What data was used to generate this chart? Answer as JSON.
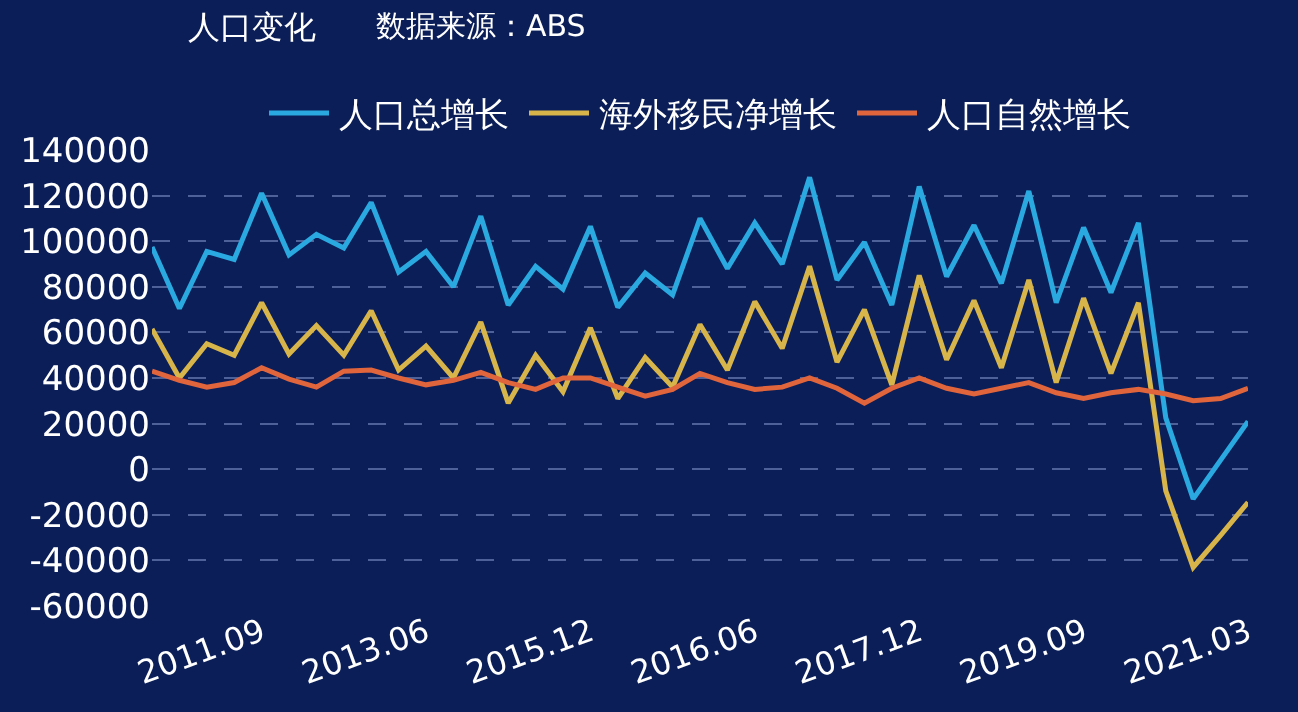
{
  "chart_data": {
    "type": "line",
    "title": "人口变化",
    "subtitle": "数据来源：ABS",
    "categories": [
      null,
      null,
      null,
      null,
      "2011.09",
      null,
      null,
      null,
      null,
      null,
      "2013.06",
      null,
      null,
      null,
      null,
      null,
      "2015.12",
      null,
      null,
      null,
      null,
      null,
      "2016.06",
      null,
      null,
      null,
      null,
      null,
      "2017.12",
      null,
      null,
      null,
      null,
      null,
      "2019.09",
      null,
      null,
      null,
      null,
      null,
      "2021.03"
    ],
    "series": [
      {
        "name": "人口总增长",
        "color": "#2aa9e0",
        "values": [
          97500,
          70500,
          95500,
          92000,
          121000,
          94000,
          103000,
          97000,
          117000,
          86500,
          95500,
          80000,
          111000,
          72000,
          89000,
          79000,
          106500,
          71000,
          86000,
          76500,
          110000,
          88000,
          108000,
          90000,
          128000,
          83000,
          99500,
          72000,
          124000,
          84500,
          107000,
          81500,
          122000,
          73000,
          106000,
          77500,
          108000,
          22500,
          -13000,
          4000,
          21000
        ]
      },
      {
        "name": "海外移民净增长",
        "color": "#d8b54a",
        "values": [
          61500,
          40000,
          55000,
          50000,
          73000,
          50500,
          63000,
          50000,
          69500,
          43500,
          54000,
          40000,
          64500,
          29000,
          50000,
          34000,
          62000,
          31000,
          49000,
          36000,
          63500,
          43500,
          73500,
          53000,
          89000,
          47000,
          70000,
          37000,
          85000,
          48000,
          74000,
          44500,
          83000,
          38000,
          75000,
          42000,
          73000,
          -9500,
          -43000,
          -29000,
          -14500
        ]
      },
      {
        "name": "人口自然增长",
        "color": "#e0643c",
        "values": [
          43000,
          39000,
          36000,
          38000,
          44500,
          39500,
          36000,
          43000,
          43500,
          40000,
          37000,
          39000,
          42500,
          38000,
          35000,
          40000,
          40000,
          36000,
          32000,
          35000,
          42000,
          38000,
          35000,
          36000,
          40000,
          35500,
          29000,
          35500,
          40000,
          35500,
          33000,
          35500,
          38000,
          33500,
          31000,
          33500,
          35000,
          33000,
          30000,
          31000,
          35500
        ]
      }
    ],
    "ylim": [
      -60000,
      140000
    ],
    "yticks": [
      -60000,
      -40000,
      -20000,
      0,
      20000,
      40000,
      60000,
      80000,
      100000,
      120000,
      140000
    ],
    "grid": "y",
    "legend": "top",
    "marker": "none",
    "line_style": "solid"
  }
}
